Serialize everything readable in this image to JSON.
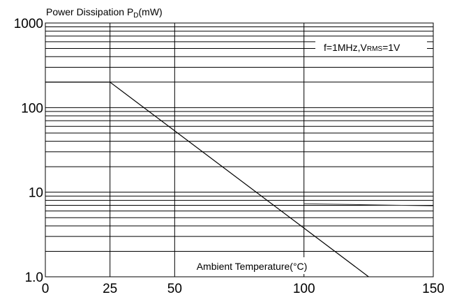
{
  "chart_data": {
    "type": "line",
    "title": "",
    "ylabel": "Power Dissipation P",
    "ylabel_sub": "D",
    "ylabel_suffix": "(mW)",
    "xlabel": "Ambient Temperature(°C)",
    "annotation": {
      "prefix": "f=1MHz,V",
      "sub": "RMS",
      "suffix": "=1V"
    },
    "x_scale": "linear",
    "y_scale": "log",
    "xlim": [
      0,
      150
    ],
    "ylim": [
      1,
      1000
    ],
    "x_ticks": [
      0,
      25,
      50,
      100,
      150
    ],
    "x_tick_labels": [
      "0",
      "25",
      "50",
      "100",
      "150"
    ],
    "y_ticks": [
      1,
      10,
      100,
      1000
    ],
    "y_tick_labels": [
      "1.0",
      "10",
      "100",
      "1000"
    ],
    "grid": true,
    "series": [
      {
        "x": [
          0,
          25,
          125
        ],
        "y": [
          200,
          200,
          1
        ]
      }
    ],
    "extra_line": {
      "x": [
        100,
        150
      ],
      "y": [
        7.3,
        6.9
      ]
    }
  }
}
